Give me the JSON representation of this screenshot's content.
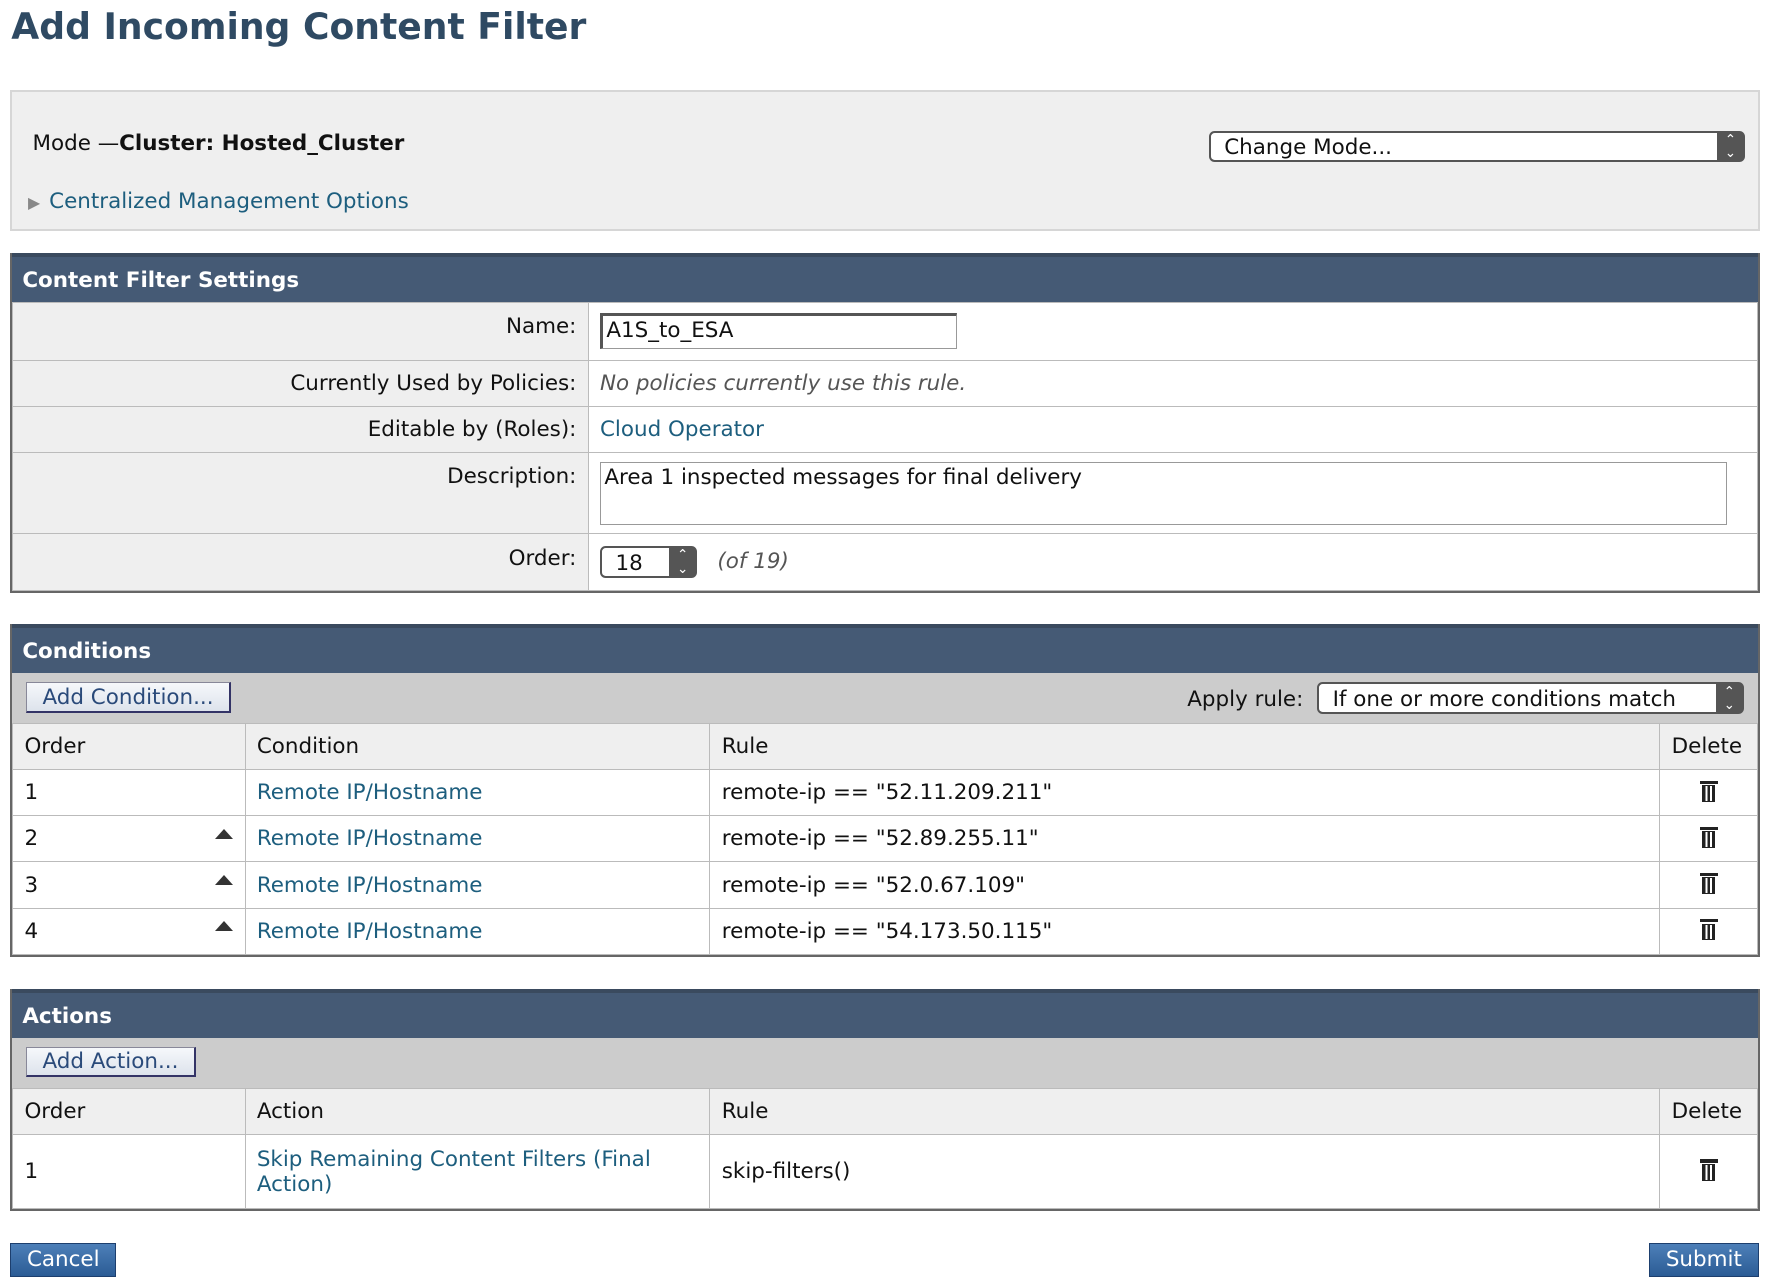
{
  "page_title": "Add Incoming Content Filter",
  "mode": {
    "label": "Mode —",
    "value": "Cluster: Hosted_Cluster",
    "change_mode": "Change Mode...",
    "centralized": "Centralized Management Options"
  },
  "settings": {
    "header": "Content Filter Settings",
    "name_label": "Name:",
    "name_value": "A1S_to_ESA",
    "used_label": "Currently Used by Policies:",
    "used_value": "No policies currently use this rule.",
    "roles_label": "Editable by (Roles):",
    "roles_value": "Cloud Operator",
    "desc_label": "Description:",
    "desc_value": "Area 1 inspected messages for final delivery",
    "order_label": "Order:",
    "order_value": "18",
    "order_of": "(of 19)"
  },
  "conditions": {
    "header": "Conditions",
    "add": "Add Condition...",
    "apply_label": "Apply rule:",
    "apply_value": "If one or more conditions match",
    "columns": [
      "Order",
      "Condition",
      "Rule",
      "Delete"
    ],
    "rows": [
      {
        "order": "1",
        "condition": "Remote IP/Hostname",
        "rule": "remote-ip == \"52.11.209.211\""
      },
      {
        "order": "2",
        "condition": "Remote IP/Hostname",
        "rule": "remote-ip == \"52.89.255.11\""
      },
      {
        "order": "3",
        "condition": "Remote IP/Hostname",
        "rule": "remote-ip == \"52.0.67.109\""
      },
      {
        "order": "4",
        "condition": "Remote IP/Hostname",
        "rule": "remote-ip == \"54.173.50.115\""
      }
    ]
  },
  "actions": {
    "header": "Actions",
    "add": "Add Action...",
    "columns": [
      "Order",
      "Action",
      "Rule",
      "Delete"
    ],
    "rows": [
      {
        "order": "1",
        "action": "Skip Remaining Content Filters (Final Action)",
        "rule": "skip-filters()"
      }
    ]
  },
  "buttons": {
    "cancel": "Cancel",
    "submit": "Submit"
  }
}
